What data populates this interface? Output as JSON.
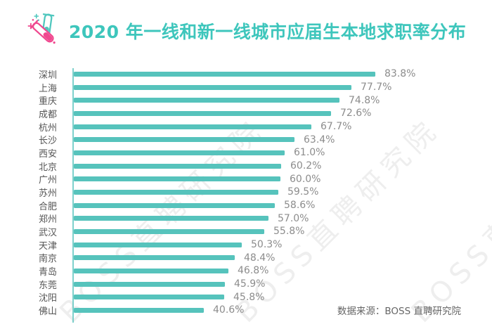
{
  "header": {
    "title": "2020 年一线和新一线城市应届生本地求职率分布",
    "icon": "test-tubes-icon"
  },
  "chart_data": {
    "type": "bar",
    "orientation": "horizontal",
    "title": "2020 年一线和新一线城市应届生本地求职率分布",
    "categories": [
      "深圳",
      "上海",
      "重庆",
      "成都",
      "杭州",
      "长沙",
      "西安",
      "北京",
      "广州",
      "苏州",
      "合肥",
      "郑州",
      "武汉",
      "天津",
      "南京",
      "青岛",
      "东莞",
      "沈阳",
      "佛山"
    ],
    "values": [
      83.8,
      77.7,
      74.8,
      72.6,
      67.7,
      63.4,
      61.0,
      60.2,
      60.0,
      59.5,
      58.6,
      57.0,
      55.8,
      50.3,
      48.4,
      46.8,
      45.9,
      45.8,
      40.6
    ],
    "value_labels": [
      "83.8%",
      "77.7%",
      "74.8%",
      "72.6%",
      "67.7%",
      "63.4%",
      "61.0%",
      "60.2%",
      "60.0%",
      "59.5%",
      "58.6%",
      "57.0%",
      "55.8%",
      "50.3%",
      "48.4%",
      "46.8%",
      "45.9%",
      "45.8%",
      "40.6%"
    ],
    "xlabel": "",
    "ylabel": "",
    "legend": false,
    "grid": false,
    "bar_color": "#56c3bc",
    "unit": "%"
  },
  "watermark": {
    "text": "BOSS直聘研究院"
  },
  "footer": {
    "source_label": "数据来源：BOSS 直聘研究院"
  },
  "colors": {
    "title_teal": "#3ec6bc",
    "bar_teal": "#56c3bc",
    "axis_teal": "#5ec6bf",
    "icon_pink": "#f0488f",
    "icon_teal": "#4fc7be",
    "city_label_gray": "#565656",
    "value_label_gray": "#8c8c8c",
    "source_gray": "#666666",
    "watermark_gray": "rgba(125,125,125,0.13)"
  }
}
